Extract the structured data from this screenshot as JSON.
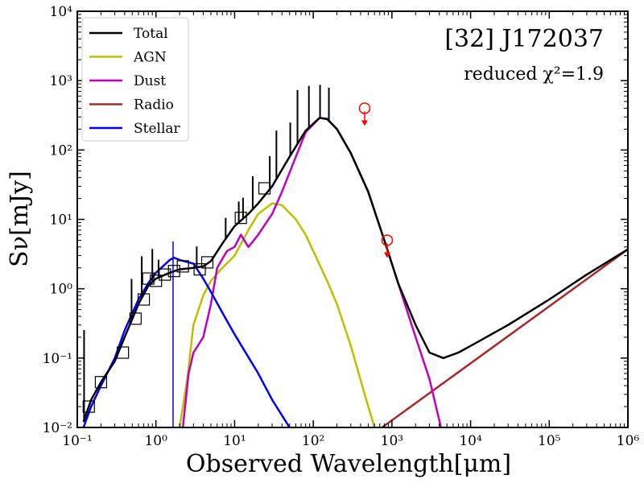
{
  "chart_data": {
    "type": "line",
    "title": "[32] J172037",
    "subtitle": "reduced χ²=1.9",
    "xlabel": "Observed Wavelength[μm]",
    "ylabel": "Sν[mJy]",
    "xscale": "log",
    "yscale": "log",
    "xlim": [
      0.1,
      1000000
    ],
    "ylim": [
      0.01,
      10000
    ],
    "xticks": [
      {
        "value": 0.1,
        "label": "10⁻¹"
      },
      {
        "value": 1,
        "label": "10⁰"
      },
      {
        "value": 10,
        "label": "10¹"
      },
      {
        "value": 100,
        "label": "10²"
      },
      {
        "value": 1000,
        "label": "10³"
      },
      {
        "value": 10000,
        "label": "10⁴"
      },
      {
        "value": 100000,
        "label": "10⁵"
      },
      {
        "value": 1000000,
        "label": "10⁶"
      }
    ],
    "yticks": [
      {
        "value": 0.01,
        "label": "10⁻²"
      },
      {
        "value": 0.1,
        "label": "10⁻¹"
      },
      {
        "value": 1,
        "label": "10⁰"
      },
      {
        "value": 10,
        "label": "10¹"
      },
      {
        "value": 100,
        "label": "10²"
      },
      {
        "value": 1000,
        "label": "10³"
      },
      {
        "value": 10000,
        "label": "10⁴"
      }
    ],
    "legend_position": "top-left",
    "series": [
      {
        "name": "Total",
        "color": "#000000",
        "points": [
          [
            0.12,
            0.012
          ],
          [
            0.15,
            0.025
          ],
          [
            0.2,
            0.045
          ],
          [
            0.3,
            0.09
          ],
          [
            0.4,
            0.2
          ],
          [
            0.6,
            0.6
          ],
          [
            0.8,
            1.1
          ],
          [
            1,
            1.4
          ],
          [
            1.5,
            1.7
          ],
          [
            2,
            1.9
          ],
          [
            3,
            2.0
          ],
          [
            4,
            2.1
          ],
          [
            5,
            2.5
          ],
          [
            7,
            4.5
          ],
          [
            10,
            8
          ],
          [
            15,
            12
          ],
          [
            20,
            17
          ],
          [
            30,
            30
          ],
          [
            50,
            80
          ],
          [
            80,
            190
          ],
          [
            120,
            290
          ],
          [
            150,
            280
          ],
          [
            200,
            200
          ],
          [
            300,
            90
          ],
          [
            500,
            25
          ],
          [
            800,
            5
          ],
          [
            1200,
            1.2
          ],
          [
            2000,
            0.3
          ],
          [
            3000,
            0.12
          ],
          [
            4500,
            0.1
          ],
          [
            7000,
            0.12
          ],
          [
            10000,
            0.15
          ],
          [
            30000,
            0.3
          ],
          [
            100000,
            0.7
          ],
          [
            300000,
            1.6
          ],
          [
            1000000,
            3.7
          ]
        ]
      },
      {
        "name": "AGN",
        "color": "#bfbf00",
        "points": [
          [
            2,
            0.01
          ],
          [
            2.5,
            0.05
          ],
          [
            3,
            0.3
          ],
          [
            4,
            0.8
          ],
          [
            5,
            1.3
          ],
          [
            7,
            2.0
          ],
          [
            10,
            3.0
          ],
          [
            15,
            7
          ],
          [
            20,
            12
          ],
          [
            30,
            17
          ],
          [
            40,
            16
          ],
          [
            60,
            10
          ],
          [
            80,
            6
          ],
          [
            100,
            3.5
          ],
          [
            150,
            1.3
          ],
          [
            200,
            0.6
          ],
          [
            300,
            0.15
          ],
          [
            450,
            0.03
          ],
          [
            600,
            0.01
          ]
        ]
      },
      {
        "name": "Dust",
        "color": "#bf00bf",
        "points": [
          [
            2.2,
            0.01
          ],
          [
            2.6,
            0.06
          ],
          [
            3,
            0.12
          ],
          [
            4,
            0.2
          ],
          [
            5,
            0.6
          ],
          [
            6,
            2.0
          ],
          [
            8,
            3.5
          ],
          [
            10,
            4
          ],
          [
            12,
            6
          ],
          [
            15,
            4
          ],
          [
            20,
            6
          ],
          [
            30,
            12
          ],
          [
            40,
            25
          ],
          [
            60,
            80
          ],
          [
            80,
            180
          ],
          [
            120,
            290
          ],
          [
            150,
            280
          ],
          [
            200,
            200
          ],
          [
            300,
            90
          ],
          [
            500,
            25
          ],
          [
            800,
            5
          ],
          [
            1200,
            1.2
          ],
          [
            2000,
            0.2
          ],
          [
            3000,
            0.05
          ],
          [
            4200,
            0.01
          ]
        ]
      },
      {
        "name": "Radio",
        "color": "#a52a2a",
        "points": [
          [
            750,
            0.01
          ],
          [
            1000000,
            3.7
          ]
        ]
      },
      {
        "name": "Stellar",
        "color": "#0000ff",
        "points": [
          [
            0.12,
            0.01
          ],
          [
            0.15,
            0.02
          ],
          [
            0.2,
            0.04
          ],
          [
            0.3,
            0.1
          ],
          [
            0.4,
            0.25
          ],
          [
            0.6,
            0.7
          ],
          [
            0.8,
            1.2
          ],
          [
            1,
            1.7
          ],
          [
            1.5,
            2.6
          ],
          [
            1.7,
            2.8
          ],
          [
            2,
            2.6
          ],
          [
            3,
            2.3
          ],
          [
            4,
            1.4
          ],
          [
            5,
            0.9
          ],
          [
            7,
            0.45
          ],
          [
            10,
            0.22
          ],
          [
            20,
            0.06
          ],
          [
            30,
            0.025
          ],
          [
            50,
            0.01
          ]
        ]
      }
    ],
    "observed_points": [
      {
        "x": 0.14,
        "y": 0.02
      },
      {
        "x": 0.2,
        "y": 0.045
      },
      {
        "x": 0.38,
        "y": 0.12
      },
      {
        "x": 0.55,
        "y": 0.37
      },
      {
        "x": 0.7,
        "y": 0.7
      },
      {
        "x": 0.8,
        "y": 1.4
      },
      {
        "x": 1.0,
        "y": 1.3
      },
      {
        "x": 1.3,
        "y": 1.6
      },
      {
        "x": 1.7,
        "y": 1.8
      },
      {
        "x": 2.2,
        "y": 2.1
      },
      {
        "x": 3.6,
        "y": 1.9
      },
      {
        "x": 4.5,
        "y": 2.4
      },
      {
        "x": 12,
        "y": 10.5
      },
      {
        "x": 24,
        "y": 28
      }
    ],
    "upper_limits": [
      {
        "x": 450,
        "y": 400,
        "color": "#ff0000"
      },
      {
        "x": 870,
        "y": 5,
        "color": "#ff0000"
      }
    ]
  }
}
